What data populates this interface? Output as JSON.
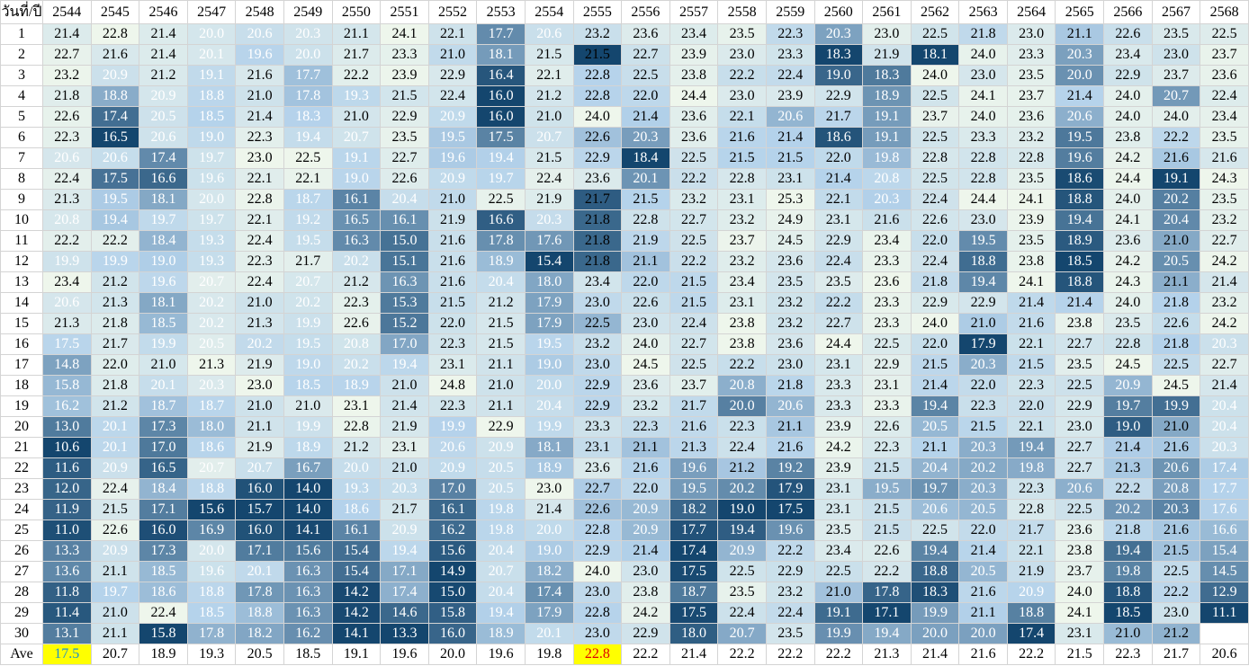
{
  "header": {
    "corner": "วันที่/ปี",
    "years": [
      "2544",
      "2545",
      "2546",
      "2547",
      "2548",
      "2549",
      "2550",
      "2551",
      "2552",
      "2553",
      "2554",
      "2555",
      "2556",
      "2557",
      "2558",
      "2559",
      "2560",
      "2561",
      "2562",
      "2563",
      "2564",
      "2565",
      "2566",
      "2567",
      "2568"
    ]
  },
  "table": {
    "rows": [
      {
        "day": "1",
        "values": [
          "21.4",
          "22.8",
          "21.4",
          "20.0",
          "20.6",
          "20.3",
          "21.1",
          "24.1",
          "22.1",
          "17.7",
          "20.6",
          "23.2",
          "23.6",
          "23.4",
          "23.5",
          "22.3",
          "20.3",
          "23.0",
          "22.5",
          "21.8",
          "23.0",
          "21.1",
          "22.6",
          "23.5",
          "22.5"
        ]
      },
      {
        "day": "2",
        "values": [
          "22.7",
          "21.6",
          "21.4",
          "20.1",
          "19.6",
          "20.0",
          "21.7",
          "23.3",
          "21.0",
          "18.1",
          "21.5",
          "21.5",
          "22.7",
          "23.9",
          "23.0",
          "23.3",
          "18.3",
          "21.9",
          "18.1",
          "24.0",
          "23.3",
          "20.3",
          "23.4",
          "23.0",
          "23.7"
        ]
      },
      {
        "day": "3",
        "values": [
          "23.2",
          "20.9",
          "21.2",
          "19.1",
          "21.6",
          "17.7",
          "22.2",
          "23.9",
          "22.9",
          "16.4",
          "22.1",
          "22.8",
          "22.5",
          "23.8",
          "22.2",
          "22.4",
          "19.0",
          "18.3",
          "24.0",
          "23.0",
          "23.5",
          "20.0",
          "22.9",
          "23.7",
          "23.6"
        ]
      },
      {
        "day": "4",
        "values": [
          "21.8",
          "18.8",
          "20.9",
          "18.8",
          "21.0",
          "17.8",
          "19.3",
          "21.5",
          "22.4",
          "16.0",
          "21.2",
          "22.8",
          "22.0",
          "24.4",
          "23.0",
          "23.9",
          "22.9",
          "18.9",
          "22.5",
          "24.1",
          "23.7",
          "21.4",
          "24.0",
          "20.7",
          "22.4"
        ]
      },
      {
        "day": "5",
        "values": [
          "22.6",
          "17.4",
          "20.5",
          "18.5",
          "21.4",
          "18.3",
          "21.0",
          "22.9",
          "20.9",
          "16.0",
          "21.0",
          "24.0",
          "21.4",
          "23.6",
          "22.1",
          "20.6",
          "21.7",
          "19.1",
          "23.7",
          "24.0",
          "23.6",
          "20.6",
          "24.0",
          "24.0",
          "23.4"
        ]
      },
      {
        "day": "6",
        "values": [
          "22.3",
          "16.5",
          "20.6",
          "19.0",
          "22.3",
          "19.4",
          "20.7",
          "23.5",
          "19.5",
          "17.5",
          "20.7",
          "22.6",
          "20.3",
          "23.6",
          "21.6",
          "21.4",
          "18.6",
          "19.1",
          "22.5",
          "23.3",
          "23.2",
          "19.5",
          "23.8",
          "22.2",
          "23.5"
        ]
      },
      {
        "day": "7",
        "values": [
          "20.6",
          "20.6",
          "17.4",
          "19.7",
          "23.0",
          "22.5",
          "19.1",
          "22.7",
          "19.6",
          "19.4",
          "21.5",
          "22.9",
          "18.4",
          "22.5",
          "21.5",
          "21.5",
          "22.0",
          "19.8",
          "22.8",
          "22.8",
          "22.8",
          "19.6",
          "24.2",
          "21.6",
          "21.6"
        ]
      },
      {
        "day": "8",
        "values": [
          "22.4",
          "17.5",
          "16.6",
          "19.6",
          "22.1",
          "22.1",
          "19.0",
          "22.6",
          "20.9",
          "19.7",
          "22.4",
          "23.6",
          "20.1",
          "22.2",
          "22.8",
          "23.1",
          "21.4",
          "20.8",
          "22.5",
          "22.8",
          "23.5",
          "18.6",
          "24.4",
          "19.1",
          "24.3"
        ]
      },
      {
        "day": "9",
        "values": [
          "21.3",
          "19.5",
          "18.1",
          "20.0",
          "22.8",
          "18.7",
          "16.1",
          "20.4",
          "21.0",
          "22.5",
          "21.9",
          "21.7",
          "21.5",
          "23.2",
          "23.1",
          "25.3",
          "22.1",
          "20.3",
          "22.4",
          "24.4",
          "24.1",
          "18.8",
          "24.0",
          "20.2",
          "23.5"
        ]
      },
      {
        "day": "10",
        "values": [
          "20.8",
          "19.4",
          "19.7",
          "19.7",
          "22.1",
          "19.2",
          "16.5",
          "16.1",
          "21.9",
          "16.6",
          "20.3",
          "21.8",
          "22.8",
          "22.7",
          "23.2",
          "24.9",
          "23.1",
          "21.6",
          "22.6",
          "23.0",
          "23.9",
          "19.4",
          "24.1",
          "20.4",
          "23.2"
        ]
      },
      {
        "day": "11",
        "values": [
          "22.2",
          "22.2",
          "18.4",
          "19.3",
          "22.4",
          "19.5",
          "16.3",
          "15.0",
          "21.6",
          "17.8",
          "17.6",
          "21.8",
          "21.9",
          "22.5",
          "23.7",
          "24.5",
          "22.9",
          "23.4",
          "22.0",
          "19.5",
          "23.5",
          "18.9",
          "23.6",
          "21.0",
          "22.7"
        ]
      },
      {
        "day": "12",
        "values": [
          "19.9",
          "19.9",
          "19.0",
          "19.3",
          "22.3",
          "21.7",
          "20.2",
          "15.1",
          "21.6",
          "18.9",
          "15.4",
          "21.8",
          "21.1",
          "22.2",
          "23.2",
          "23.6",
          "22.4",
          "23.3",
          "22.4",
          "18.8",
          "23.8",
          "18.5",
          "24.2",
          "20.5",
          "24.2"
        ]
      },
      {
        "day": "13",
        "values": [
          "23.4",
          "21.2",
          "19.6",
          "20.7",
          "22.4",
          "20.7",
          "21.2",
          "16.3",
          "21.6",
          "20.4",
          "18.0",
          "23.4",
          "22.0",
          "21.5",
          "23.4",
          "23.5",
          "23.5",
          "23.6",
          "21.8",
          "19.4",
          "24.1",
          "18.8",
          "24.3",
          "21.1",
          "21.4"
        ]
      },
      {
        "day": "14",
        "values": [
          "20.6",
          "21.3",
          "18.1",
          "20.2",
          "21.0",
          "20.2",
          "22.3",
          "15.3",
          "21.5",
          "21.2",
          "17.9",
          "23.0",
          "22.6",
          "21.5",
          "23.1",
          "23.2",
          "22.2",
          "23.3",
          "22.9",
          "22.9",
          "21.4",
          "21.4",
          "24.0",
          "21.8",
          "23.2"
        ]
      },
      {
        "day": "15",
        "values": [
          "21.3",
          "21.8",
          "18.5",
          "20.2",
          "21.3",
          "19.9",
          "22.6",
          "15.2",
          "22.0",
          "21.5",
          "17.9",
          "22.5",
          "23.0",
          "22.4",
          "23.8",
          "23.2",
          "22.7",
          "23.3",
          "24.0",
          "21.0",
          "21.6",
          "23.8",
          "23.5",
          "22.6",
          "24.2"
        ]
      },
      {
        "day": "16",
        "values": [
          "17.5",
          "21.7",
          "19.9",
          "20.5",
          "20.2",
          "19.5",
          "20.8",
          "17.0",
          "22.3",
          "21.5",
          "19.5",
          "23.2",
          "24.0",
          "22.7",
          "23.8",
          "23.6",
          "24.4",
          "22.5",
          "22.0",
          "17.9",
          "22.1",
          "22.7",
          "22.8",
          "21.8",
          "20.3"
        ]
      },
      {
        "day": "17",
        "values": [
          "14.8",
          "22.0",
          "21.0",
          "21.3",
          "21.9",
          "19.0",
          "20.2",
          "19.4",
          "23.1",
          "21.1",
          "19.0",
          "23.0",
          "24.5",
          "22.5",
          "22.2",
          "23.0",
          "23.1",
          "22.9",
          "21.5",
          "20.3",
          "21.5",
          "23.5",
          "24.5",
          "22.5",
          "22.7"
        ]
      },
      {
        "day": "18",
        "values": [
          "15.8",
          "21.8",
          "20.1",
          "20.3",
          "23.0",
          "18.5",
          "18.9",
          "21.0",
          "24.8",
          "21.0",
          "20.0",
          "22.9",
          "23.6",
          "23.7",
          "20.8",
          "21.8",
          "23.3",
          "23.1",
          "21.4",
          "22.0",
          "22.3",
          "22.5",
          "20.9",
          "24.5",
          "21.4"
        ]
      },
      {
        "day": "19",
        "values": [
          "16.2",
          "21.2",
          "18.7",
          "18.7",
          "21.0",
          "21.0",
          "23.1",
          "21.4",
          "22.3",
          "21.1",
          "20.4",
          "22.9",
          "23.2",
          "21.7",
          "20.0",
          "20.6",
          "23.3",
          "23.3",
          "19.4",
          "22.3",
          "22.0",
          "22.9",
          "19.7",
          "19.9",
          "20.4"
        ]
      },
      {
        "day": "20",
        "values": [
          "13.0",
          "20.1",
          "17.3",
          "18.0",
          "21.1",
          "19.9",
          "22.8",
          "21.9",
          "19.9",
          "22.9",
          "19.9",
          "23.3",
          "22.3",
          "21.6",
          "22.3",
          "21.1",
          "23.9",
          "22.6",
          "20.5",
          "21.5",
          "22.1",
          "23.0",
          "19.0",
          "21.0",
          "20.4"
        ]
      },
      {
        "day": "21",
        "values": [
          "10.6",
          "20.1",
          "17.0",
          "18.6",
          "21.9",
          "18.9",
          "21.2",
          "23.1",
          "20.6",
          "20.9",
          "18.1",
          "23.1",
          "21.1",
          "21.3",
          "22.4",
          "21.6",
          "24.2",
          "22.3",
          "21.1",
          "20.3",
          "19.4",
          "22.7",
          "21.4",
          "21.6",
          "20.3"
        ]
      },
      {
        "day": "22",
        "values": [
          "11.6",
          "20.9",
          "16.5",
          "20.7",
          "20.7",
          "16.7",
          "20.0",
          "21.0",
          "20.9",
          "20.5",
          "18.9",
          "23.6",
          "21.6",
          "19.6",
          "21.2",
          "19.2",
          "23.9",
          "21.5",
          "20.4",
          "20.2",
          "19.8",
          "22.7",
          "21.3",
          "20.6",
          "17.4"
        ]
      },
      {
        "day": "23",
        "values": [
          "12.0",
          "22.4",
          "18.4",
          "18.8",
          "16.0",
          "14.0",
          "19.3",
          "20.3",
          "17.0",
          "20.5",
          "23.0",
          "22.7",
          "22.0",
          "19.5",
          "20.2",
          "17.9",
          "23.1",
          "19.5",
          "19.7",
          "20.3",
          "22.3",
          "20.6",
          "22.2",
          "20.8",
          "17.7"
        ]
      },
      {
        "day": "24",
        "values": [
          "11.9",
          "21.5",
          "17.1",
          "15.6",
          "15.7",
          "14.0",
          "18.6",
          "21.7",
          "16.1",
          "19.8",
          "21.4",
          "22.6",
          "20.9",
          "18.2",
          "19.0",
          "17.5",
          "23.1",
          "21.5",
          "20.6",
          "20.5",
          "22.8",
          "22.5",
          "20.2",
          "20.3",
          "17.6"
        ]
      },
      {
        "day": "25",
        "values": [
          "11.0",
          "22.6",
          "16.0",
          "16.9",
          "16.0",
          "14.1",
          "16.1",
          "20.9",
          "16.2",
          "19.8",
          "20.0",
          "22.8",
          "20.9",
          "17.7",
          "19.4",
          "19.6",
          "23.5",
          "21.5",
          "22.5",
          "22.0",
          "21.7",
          "23.6",
          "21.8",
          "21.6",
          "16.6"
        ]
      },
      {
        "day": "26",
        "values": [
          "13.3",
          "20.9",
          "17.3",
          "20.0",
          "17.1",
          "15.6",
          "15.4",
          "19.4",
          "15.6",
          "20.4",
          "19.0",
          "22.9",
          "21.4",
          "17.4",
          "20.9",
          "22.2",
          "23.4",
          "22.6",
          "19.4",
          "21.4",
          "22.1",
          "23.8",
          "19.4",
          "21.5",
          "15.4"
        ]
      },
      {
        "day": "27",
        "values": [
          "13.6",
          "21.1",
          "18.5",
          "19.6",
          "20.1",
          "16.3",
          "15.4",
          "17.1",
          "14.9",
          "20.7",
          "18.2",
          "24.0",
          "23.0",
          "17.5",
          "22.5",
          "22.9",
          "22.5",
          "22.2",
          "18.8",
          "20.5",
          "21.9",
          "23.7",
          "19.8",
          "22.5",
          "14.5"
        ]
      },
      {
        "day": "28",
        "values": [
          "11.8",
          "19.7",
          "18.6",
          "18.8",
          "17.8",
          "16.3",
          "14.2",
          "17.4",
          "15.0",
          "20.4",
          "17.4",
          "23.0",
          "23.8",
          "18.7",
          "23.5",
          "23.2",
          "21.0",
          "17.8",
          "18.3",
          "21.6",
          "20.9",
          "24.0",
          "18.8",
          "22.2",
          "12.9"
        ]
      },
      {
        "day": "29",
        "values": [
          "11.4",
          "21.0",
          "22.4",
          "18.5",
          "18.8",
          "16.3",
          "14.2",
          "14.6",
          "15.8",
          "19.4",
          "17.9",
          "22.8",
          "24.2",
          "17.5",
          "22.4",
          "22.4",
          "19.1",
          "17.1",
          "19.9",
          "21.1",
          "18.8",
          "24.1",
          "18.5",
          "23.0",
          "11.1"
        ]
      },
      {
        "day": "30",
        "values": [
          "13.1",
          "21.1",
          "15.8",
          "17.8",
          "18.2",
          "16.2",
          "14.1",
          "13.3",
          "16.0",
          "18.9",
          "20.1",
          "23.0",
          "22.9",
          "18.0",
          "20.7",
          "23.5",
          "19.9",
          "19.4",
          "20.0",
          "20.0",
          "17.4",
          "23.1",
          "21.0",
          "21.2",
          null
        ]
      }
    ],
    "average": {
      "label": "Ave",
      "values": [
        "17.5",
        "20.7",
        "18.9",
        "19.3",
        "20.5",
        "18.5",
        "19.1",
        "19.6",
        "20.0",
        "19.6",
        "19.8",
        "22.8",
        "22.2",
        "21.4",
        "22.2",
        "22.2",
        "22.2",
        "21.3",
        "21.4",
        "21.6",
        "22.2",
        "21.5",
        "22.3",
        "21.7",
        "20.6"
      ]
    }
  }
}
